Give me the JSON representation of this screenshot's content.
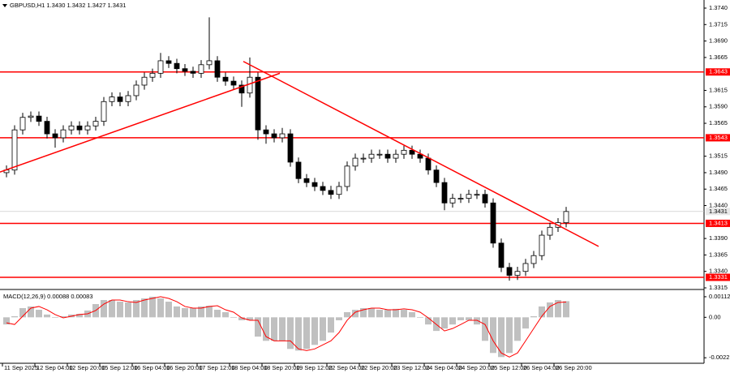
{
  "chart_data": [
    {
      "type": "candlestick",
      "title": "GBPUSD,H1  1.3430 1.3432 1.3427 1.3431",
      "categories": [
        "11 Sep 2025",
        null,
        null,
        null,
        "12 Sep 04:00",
        null,
        null,
        null,
        "12 Sep 20:00",
        null,
        null,
        null,
        "15 Sep 12:00",
        null,
        null,
        null,
        "16 Sep 04:00",
        null,
        null,
        null,
        "16 Sep 20:00",
        null,
        null,
        null,
        "17 Sep 12:00",
        null,
        null,
        null,
        "18 Sep 04:00",
        null,
        null,
        null,
        "18 Sep 20:00",
        null,
        null,
        null,
        "19 Sep 12:00",
        null,
        null,
        null,
        "22 Sep 04:00",
        null,
        null,
        null,
        "22 Sep 20:00",
        null,
        null,
        null,
        "23 Sep 12:00",
        null,
        null,
        null,
        "24 Sep 04:00",
        null,
        null,
        null,
        "24 Sep 20:00",
        null,
        null,
        null,
        "25 Sep 12:00",
        null,
        null,
        null,
        "26 Sep 04:00",
        null,
        null,
        null,
        "26 Sep 20:00",
        null
      ],
      "open": [
        1.349,
        1.3494,
        1.3555,
        1.3574,
        1.3576,
        1.3568,
        1.3549,
        1.3543,
        1.3555,
        1.3561,
        1.3555,
        1.3561,
        1.3568,
        1.3598,
        1.3605,
        1.3598,
        1.3607,
        1.3623,
        1.3635,
        1.3641,
        1.366,
        1.3656,
        1.3648,
        1.3644,
        1.3641,
        1.3654,
        1.366,
        1.3635,
        1.3629,
        1.3623,
        1.3611,
        1.3635,
        1.3555,
        1.3549,
        1.3543,
        1.3549,
        1.3506,
        1.3481,
        1.3475,
        1.3469,
        1.3463,
        1.3457,
        1.3469,
        1.35,
        1.3512,
        1.3512,
        1.3518,
        1.3518,
        1.3512,
        1.3518,
        1.3524,
        1.3518,
        1.3512,
        1.3494,
        1.3475,
        1.3444,
        1.3451,
        1.3451,
        1.3457,
        1.3457,
        1.3444,
        1.3383,
        1.3346,
        1.3334,
        1.334,
        1.3352,
        1.3364,
        1.3395,
        1.3407,
        1.3414
      ],
      "high": [
        1.3501,
        1.3562,
        1.3581,
        1.3583,
        1.3583,
        1.3575,
        1.3556,
        1.3562,
        1.3568,
        1.3568,
        1.3568,
        1.3575,
        1.3605,
        1.3612,
        1.3612,
        1.3614,
        1.363,
        1.3642,
        1.3648,
        1.3672,
        1.3667,
        1.3663,
        1.3655,
        1.3651,
        1.3661,
        1.3726,
        1.3667,
        1.3642,
        1.3636,
        1.363,
        1.3665,
        1.3642,
        1.3562,
        1.3556,
        1.3558,
        1.3556,
        1.3513,
        1.3488,
        1.3482,
        1.3476,
        1.347,
        1.3476,
        1.3507,
        1.3519,
        1.3519,
        1.3525,
        1.3525,
        1.3525,
        1.3525,
        1.3531,
        1.3531,
        1.3525,
        1.3519,
        1.3501,
        1.3482,
        1.3458,
        1.3458,
        1.3464,
        1.3464,
        1.3464,
        1.3451,
        1.339,
        1.3353,
        1.3347,
        1.3359,
        1.3371,
        1.3402,
        1.3414,
        1.3421,
        1.3438
      ],
      "low": [
        1.3483,
        1.3487,
        1.3548,
        1.3567,
        1.3561,
        1.3542,
        1.3528,
        1.3536,
        1.3548,
        1.3548,
        1.3548,
        1.3554,
        1.3561,
        1.3591,
        1.3591,
        1.3591,
        1.36,
        1.3616,
        1.3628,
        1.3634,
        1.3649,
        1.3641,
        1.3637,
        1.3634,
        1.3634,
        1.3647,
        1.3628,
        1.3622,
        1.3616,
        1.359,
        1.3604,
        1.354,
        1.3534,
        1.3536,
        1.3536,
        1.3499,
        1.3474,
        1.3468,
        1.3462,
        1.3456,
        1.345,
        1.345,
        1.3462,
        1.3493,
        1.3505,
        1.3505,
        1.3511,
        1.3505,
        1.3505,
        1.3511,
        1.3511,
        1.3505,
        1.3487,
        1.3468,
        1.3433,
        1.3437,
        1.3444,
        1.3444,
        1.345,
        1.3437,
        1.3376,
        1.3339,
        1.3326,
        1.3327,
        1.3333,
        1.3345,
        1.3357,
        1.3388,
        1.34,
        1.3407
      ],
      "close": [
        1.3494,
        1.3555,
        1.3574,
        1.3576,
        1.3568,
        1.3549,
        1.3543,
        1.3555,
        1.3561,
        1.3555,
        1.3561,
        1.3568,
        1.3598,
        1.3605,
        1.3598,
        1.3607,
        1.3623,
        1.3635,
        1.3641,
        1.366,
        1.3656,
        1.3648,
        1.3644,
        1.3641,
        1.3654,
        1.366,
        1.3635,
        1.3629,
        1.3623,
        1.3611,
        1.3635,
        1.3555,
        1.3549,
        1.3543,
        1.3549,
        1.3506,
        1.3481,
        1.3475,
        1.3469,
        1.3463,
        1.3457,
        1.3469,
        1.35,
        1.3512,
        1.3512,
        1.3518,
        1.3518,
        1.3512,
        1.3518,
        1.3524,
        1.3518,
        1.3512,
        1.3494,
        1.3475,
        1.3444,
        1.3451,
        1.3451,
        1.3457,
        1.3457,
        1.3444,
        1.3383,
        1.3346,
        1.3334,
        1.334,
        1.3352,
        1.3364,
        1.3395,
        1.3407,
        1.3414,
        1.3431
      ],
      "color": "#000000",
      "ylim": [
        1.3315,
        1.374
      ],
      "yticks": [
        1.3315,
        {
          "value": 1.334,
          "label": "1.3340"
        },
        1.3365,
        {
          "value": 1.339,
          "label": "1.3390"
        },
        {
          "value": 1.344,
          "label": "1.3440"
        },
        1.3465,
        {
          "value": 1.349,
          "label": "1.3490"
        },
        1.3515,
        1.3565,
        {
          "value": 1.359,
          "label": "1.3590"
        },
        1.3615,
        1.3665,
        {
          "value": 1.369,
          "label": "1.3690"
        },
        1.3715,
        {
          "value": 1.374,
          "label": "1.3740"
        }
      ],
      "levels": [
        1.3643,
        1.3543,
        1.3413,
        1.3331
      ],
      "level_color": "#ff0000",
      "last_price": 1.3431,
      "trendlines": [
        {
          "x": [
            -0.8,
            33.7
          ],
          "y": [
            1.3491,
            1.3641
          ]
        },
        {
          "x": [
            29.2,
            73
          ],
          "y": [
            1.3659,
            1.3378
          ]
        }
      ]
    },
    {
      "type": "macd",
      "title": "MACD(12,26,9) 0.00088 0.00083",
      "histogram": [
        -0.00039,
        6e-05,
        0.0005,
        0.00059,
        0.00041,
        0.00015,
        -3e-05,
        6e-05,
        0.00015,
        0.00019,
        0.00037,
        0.00072,
        0.00094,
        0.00094,
        0.00085,
        0.00081,
        0.00094,
        0.00103,
        0.00112,
        0.00103,
        0.00085,
        0.00059,
        0.0005,
        0.0005,
        0.00059,
        0.00063,
        0.00041,
        0.00028,
        -3e-05,
        -0.00016,
        -0.00016,
        -0.00105,
        -0.00128,
        -0.00128,
        -0.00128,
        -0.00172,
        -0.00181,
        -0.00172,
        -0.0015,
        -0.00128,
        -0.00083,
        -0.00016,
        0.00028,
        0.00041,
        0.0005,
        0.0005,
        0.00041,
        0.00041,
        0.00046,
        0.00041,
        0.00028,
        -3e-05,
        -0.00039,
        -0.00074,
        -0.00061,
        -0.00039,
        -0.00016,
        -0.00016,
        -0.00039,
        -0.00128,
        -0.00194,
        -0.00216,
        -0.00194,
        -0.00128,
        -0.00061,
        6e-05,
        0.00059,
        0.00081,
        0.00094,
        0.00088
      ],
      "signal": [
        -0.0003,
        -0.00039,
        6e-05,
        0.0005,
        0.00059,
        0.00041,
        0.00015,
        -3e-05,
        6e-05,
        0.00015,
        0.00019,
        0.00037,
        0.00072,
        0.00094,
        0.00094,
        0.00085,
        0.00081,
        0.00094,
        0.00103,
        0.00112,
        0.00103,
        0.00085,
        0.00059,
        0.0005,
        0.0005,
        0.00059,
        0.00063,
        0.00041,
        0.00028,
        -3e-05,
        -0.00016,
        -0.00016,
        -0.00105,
        -0.00128,
        -0.00128,
        -0.00128,
        -0.00172,
        -0.00181,
        -0.00172,
        -0.0015,
        -0.00128,
        -0.00083,
        -0.00016,
        0.00028,
        0.00041,
        0.0005,
        0.0005,
        0.00041,
        0.00041,
        0.00046,
        0.00041,
        0.00028,
        -3e-05,
        -0.00039,
        -0.00074,
        -0.00061,
        -0.00039,
        -0.00016,
        -0.00016,
        -0.00039,
        -0.00128,
        -0.00194,
        -0.00216,
        -0.00194,
        -0.00128,
        -0.00061,
        6e-05,
        0.00059,
        0.00081,
        0.00083
      ],
      "histogram_color": "#c0c0c0",
      "signal_color": "#ff0000",
      "ylim": [
        -0.0025,
        0.00147
      ],
      "yticks": [
        0.00112,
        {
          "value": 0,
          "label": "0.00"
        },
        -0.0022
      ]
    }
  ]
}
